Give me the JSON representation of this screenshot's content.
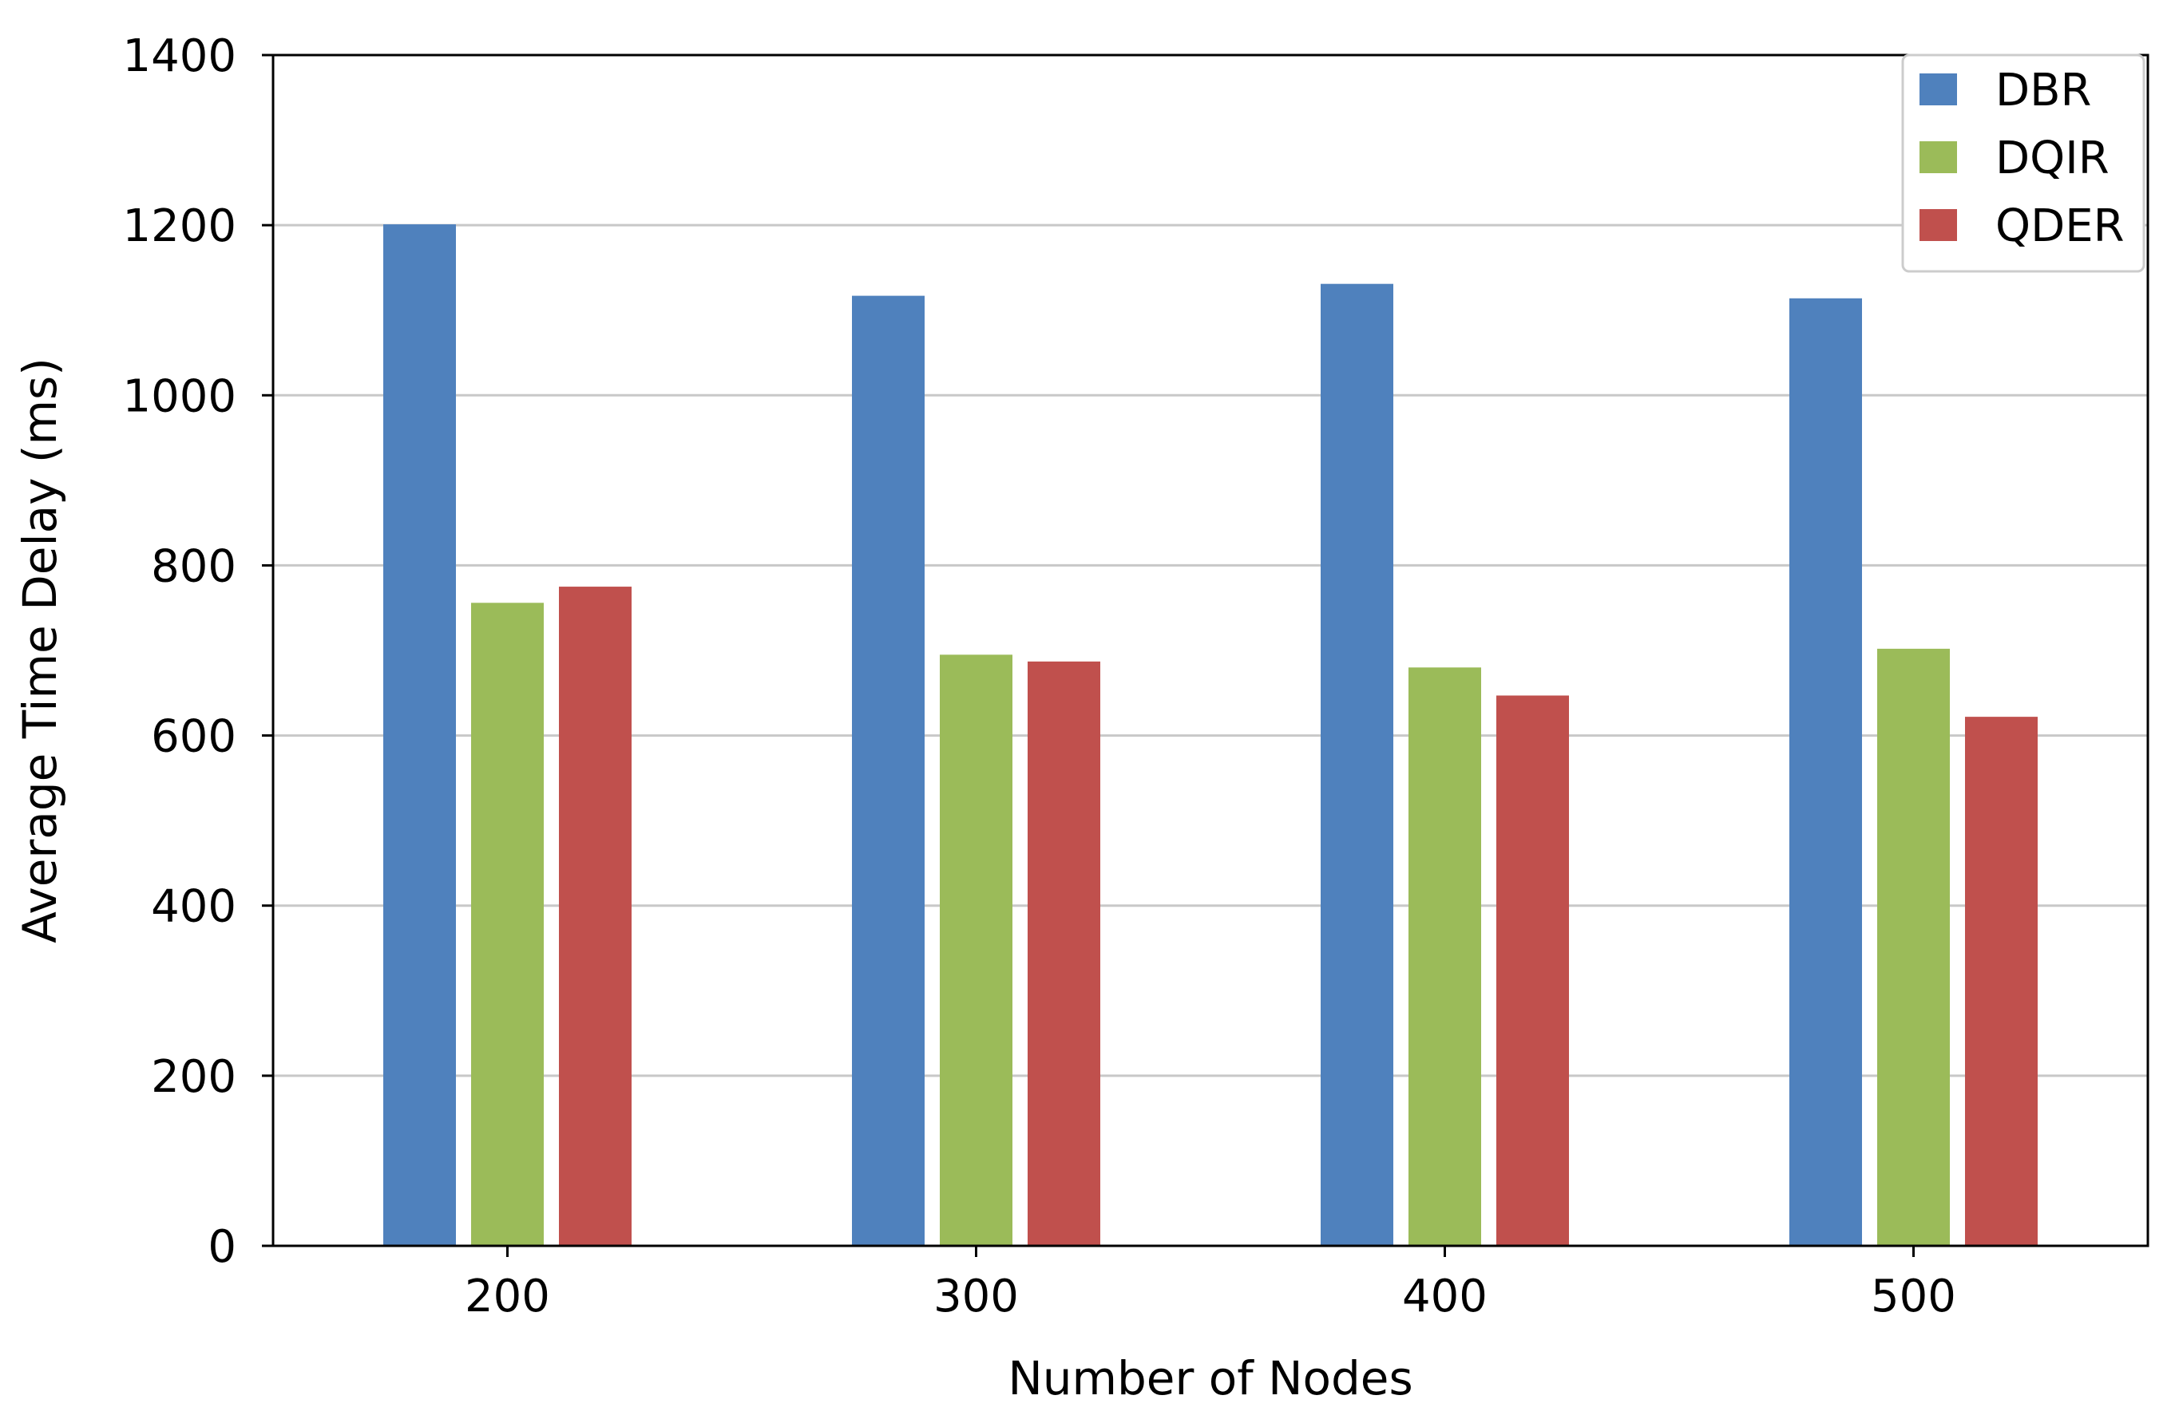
{
  "chart_data": {
    "type": "bar",
    "title": "",
    "xlabel": "Number of Nodes",
    "ylabel": "Average Time Delay (ms)",
    "categories": [
      "200",
      "300",
      "400",
      "500"
    ],
    "ylim": [
      0,
      1400
    ],
    "yticks": [
      "0",
      "200",
      "400",
      "600",
      "800",
      "1000",
      "1200",
      "1400"
    ],
    "grid": "horizontal",
    "legend_position": "top-right",
    "series": [
      {
        "name": "DBR",
        "color": "#4f81bd",
        "values": [
          1201,
          1117,
          1131,
          1114
        ]
      },
      {
        "name": "DQIR",
        "color": "#9bbb59",
        "values": [
          756,
          695,
          680,
          702
        ]
      },
      {
        "name": "QDER",
        "color": "#c0504d",
        "values": [
          775,
          687,
          647,
          622
        ]
      }
    ]
  }
}
